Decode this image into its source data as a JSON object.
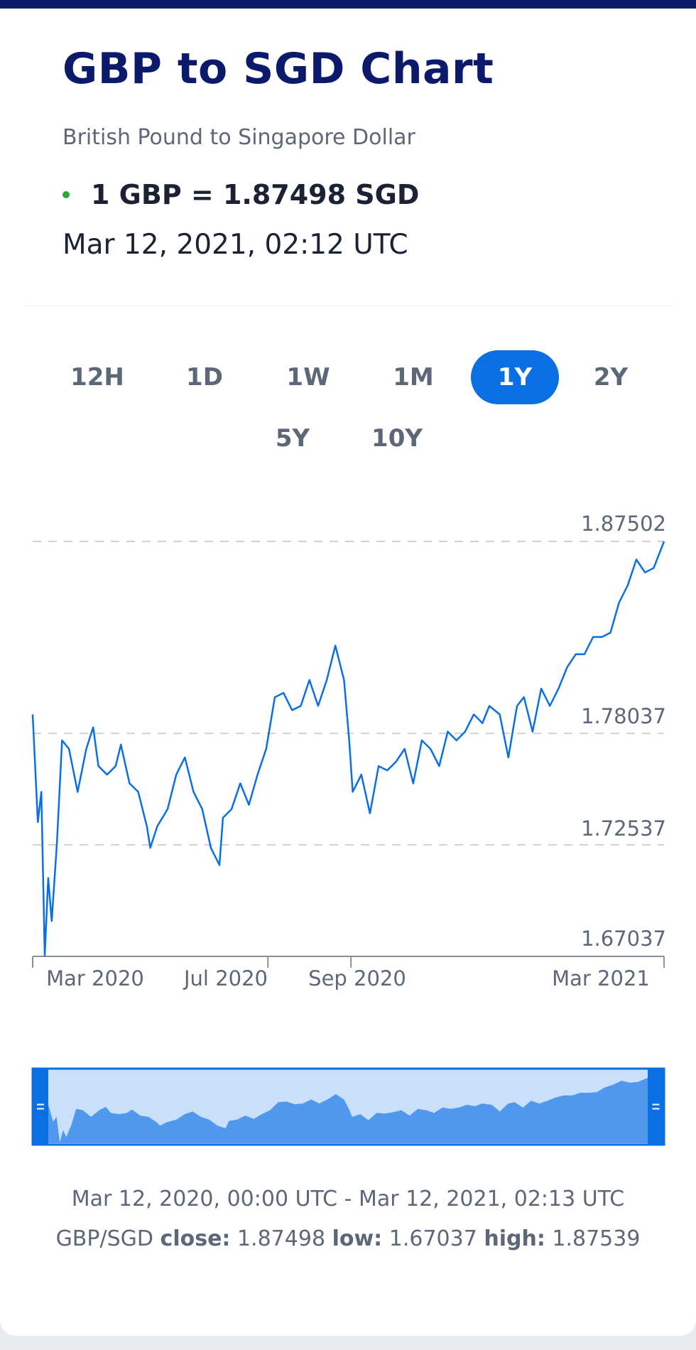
{
  "header": {
    "title": "GBP to SGD Chart",
    "subtitle": "British Pound to Singapore Dollar",
    "rate": "1 GBP = 1.87498 SGD",
    "timestamp": "Mar 12, 2021, 02:12 UTC"
  },
  "ranges": [
    {
      "label": "12H"
    },
    {
      "label": "1D"
    },
    {
      "label": "1W"
    },
    {
      "label": "1M"
    },
    {
      "label": "1Y",
      "active": true
    },
    {
      "label": "2Y"
    },
    {
      "label": "5Y"
    },
    {
      "label": "10Y"
    }
  ],
  "colors": {
    "accent": "#0a6fe3",
    "title": "#0b1a6b",
    "status": "#2eaa3c",
    "nav_fill": "#4f98ee",
    "nav_bg": "#c9e0f8"
  },
  "chart_data": {
    "type": "line",
    "title": "GBP/SGD",
    "xlabel": "",
    "ylabel": "",
    "x_unit": "days since Mar 12, 2020",
    "xlim": [
      0,
      365
    ],
    "ylim": [
      1.67037,
      1.87502
    ],
    "yticks": [
      "1.87502",
      "1.78037",
      "1.72537",
      "1.67037"
    ],
    "xticks": [
      {
        "label": "Mar 2020",
        "day": 0
      },
      {
        "label": "Jul 2020",
        "day": 136
      },
      {
        "label": "Sep 2020",
        "day": 184
      },
      {
        "label": "Mar 2021",
        "day": 365
      }
    ],
    "grid": "dashed horizontal",
    "points": [
      [
        0,
        1.7897
      ],
      [
        3,
        1.7366
      ],
      [
        5,
        1.7515
      ],
      [
        7,
        1.6708
      ],
      [
        9,
        1.709
      ],
      [
        11,
        1.6878
      ],
      [
        14,
        1.726
      ],
      [
        17,
        1.7769
      ],
      [
        21,
        1.7727
      ],
      [
        26,
        1.7515
      ],
      [
        31,
        1.7727
      ],
      [
        35,
        1.7833
      ],
      [
        38,
        1.7642
      ],
      [
        43,
        1.76
      ],
      [
        48,
        1.7642
      ],
      [
        51,
        1.7748
      ],
      [
        56,
        1.7557
      ],
      [
        61,
        1.7515
      ],
      [
        66,
        1.7345
      ],
      [
        68,
        1.7239
      ],
      [
        72,
        1.7345
      ],
      [
        78,
        1.743
      ],
      [
        83,
        1.76
      ],
      [
        88,
        1.7685
      ],
      [
        93,
        1.7515
      ],
      [
        98,
        1.743
      ],
      [
        103,
        1.7239
      ],
      [
        108,
        1.7154
      ],
      [
        110,
        1.7387
      ],
      [
        115,
        1.743
      ],
      [
        120,
        1.7557
      ],
      [
        125,
        1.7451
      ],
      [
        130,
        1.76
      ],
      [
        135,
        1.7727
      ],
      [
        140,
        1.7982
      ],
      [
        145,
        1.8003
      ],
      [
        150,
        1.7918
      ],
      [
        155,
        1.7939
      ],
      [
        160,
        1.8067
      ],
      [
        165,
        1.7939
      ],
      [
        170,
        1.8067
      ],
      [
        175,
        1.8236
      ],
      [
        180,
        1.8067
      ],
      [
        183,
        1.7769
      ],
      [
        185,
        1.7515
      ],
      [
        190,
        1.76
      ],
      [
        195,
        1.7409
      ],
      [
        200,
        1.7642
      ],
      [
        205,
        1.7621
      ],
      [
        210,
        1.7663
      ],
      [
        215,
        1.7727
      ],
      [
        220,
        1.7557
      ],
      [
        225,
        1.7769
      ],
      [
        230,
        1.7727
      ],
      [
        235,
        1.7642
      ],
      [
        240,
        1.7812
      ],
      [
        245,
        1.7769
      ],
      [
        250,
        1.7812
      ],
      [
        255,
        1.7897
      ],
      [
        260,
        1.7854
      ],
      [
        264,
        1.7939
      ],
      [
        270,
        1.7897
      ],
      [
        275,
        1.7685
      ],
      [
        280,
        1.7939
      ],
      [
        284,
        1.7982
      ],
      [
        289,
        1.7812
      ],
      [
        294,
        1.8024
      ],
      [
        299,
        1.7939
      ],
      [
        304,
        1.8024
      ],
      [
        309,
        1.813
      ],
      [
        314,
        1.8194
      ],
      [
        319,
        1.8194
      ],
      [
        324,
        1.8279
      ],
      [
        329,
        1.8279
      ],
      [
        334,
        1.83
      ],
      [
        339,
        1.8449
      ],
      [
        344,
        1.8534
      ],
      [
        349,
        1.8661
      ],
      [
        354,
        1.8597
      ],
      [
        359,
        1.8619
      ],
      [
        365,
        1.875
      ]
    ]
  },
  "footer": {
    "range": "Mar 12, 2020, 00:00 UTC - Mar 12, 2021, 02:13 UTC",
    "pair": "GBP/SGD",
    "close_label": "close:",
    "close": "1.87498",
    "low_label": "low:",
    "low": "1.67037",
    "high_label": "high:",
    "high": "1.87539"
  }
}
